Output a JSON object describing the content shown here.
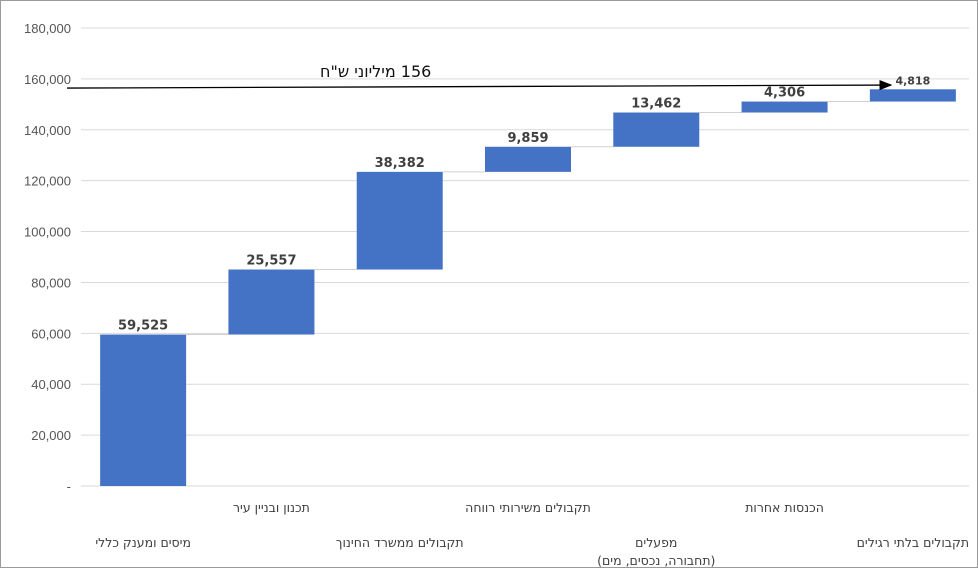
{
  "chart_data": {
    "type": "bar",
    "subtype": "waterfall",
    "categories": [
      [
        "מיסים ומענק כללי"
      ],
      [
        "תכנון ובניין עיר"
      ],
      [
        "תקבולים ממשרד החינוך"
      ],
      [
        "תקבולים משירותי רווחה"
      ],
      [
        "מפעלים",
        "(תחבורה, נכסים, מים)"
      ],
      [
        "הכנסות אחרות"
      ],
      [
        "תקבולים בלתי רגילים"
      ]
    ],
    "values": [
      59525,
      25557,
      38382,
      9859,
      13462,
      4306,
      4818
    ],
    "value_labels": [
      "59,525",
      "25,557",
      "38,382",
      "9,859",
      "13,462",
      "4,306",
      "4,818"
    ],
    "ylim": [
      0,
      180000
    ],
    "yticks": [
      0,
      20000,
      40000,
      60000,
      80000,
      100000,
      120000,
      140000,
      160000,
      180000
    ],
    "ytick_labels": [
      "-",
      "20,000",
      "40,000",
      "60,000",
      "80,000",
      "100,000",
      "120,000",
      "140,000",
      "160,000",
      "180,000"
    ],
    "bar_color": "#4472C4",
    "grid": true,
    "annotation": {
      "text": "156  מיליוני ש\"ח",
      "value": 156000
    }
  }
}
